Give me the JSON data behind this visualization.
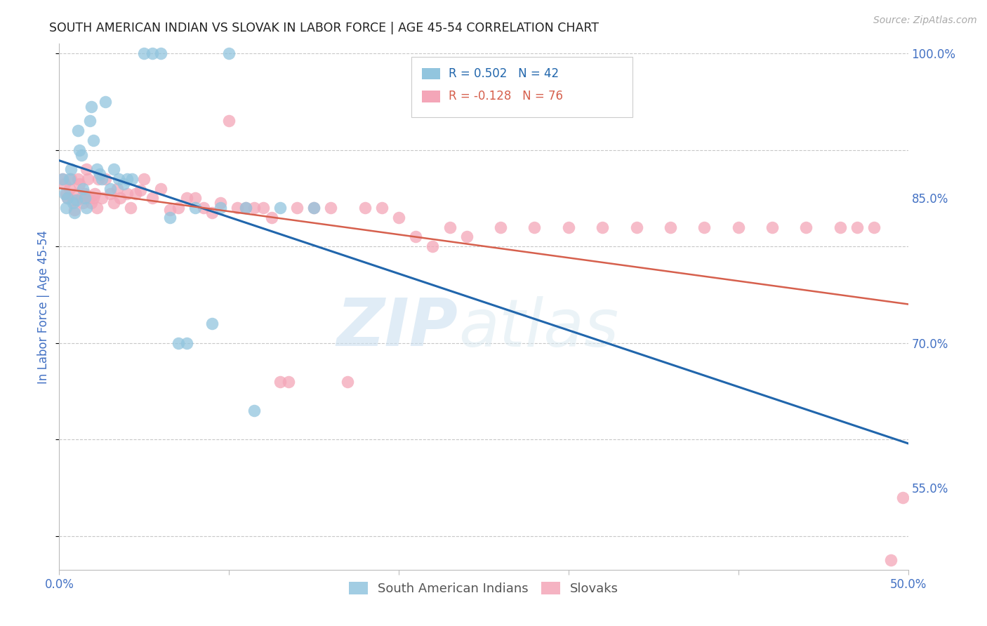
{
  "title": "SOUTH AMERICAN INDIAN VS SLOVAK IN LABOR FORCE | AGE 45-54 CORRELATION CHART",
  "source": "Source: ZipAtlas.com",
  "ylabel": "In Labor Force | Age 45-54",
  "xlim": [
    0.0,
    0.5
  ],
  "ylim": [
    0.465,
    1.01
  ],
  "legend_blue_label": "South American Indians",
  "legend_pink_label": "Slovaks",
  "R_blue": 0.502,
  "N_blue": 42,
  "R_pink": -0.128,
  "N_pink": 76,
  "blue_scatter_x": [
    0.002,
    0.003,
    0.004,
    0.005,
    0.006,
    0.007,
    0.008,
    0.009,
    0.01,
    0.011,
    0.012,
    0.013,
    0.014,
    0.015,
    0.016,
    0.018,
    0.019,
    0.02,
    0.022,
    0.024,
    0.025,
    0.027,
    0.03,
    0.032,
    0.035,
    0.038,
    0.04,
    0.043,
    0.05,
    0.055,
    0.06,
    0.065,
    0.07,
    0.075,
    0.08,
    0.09,
    0.095,
    0.1,
    0.11,
    0.115,
    0.13,
    0.15
  ],
  "blue_scatter_y": [
    0.87,
    0.855,
    0.84,
    0.85,
    0.87,
    0.88,
    0.845,
    0.835,
    0.848,
    0.92,
    0.9,
    0.895,
    0.86,
    0.85,
    0.84,
    0.93,
    0.945,
    0.91,
    0.88,
    0.875,
    0.87,
    0.95,
    0.86,
    0.88,
    0.87,
    0.865,
    0.87,
    0.87,
    1.0,
    1.0,
    1.0,
    0.83,
    0.7,
    0.7,
    0.84,
    0.72,
    0.84,
    1.0,
    0.84,
    0.63,
    0.84,
    0.84
  ],
  "pink_scatter_x": [
    0.002,
    0.003,
    0.004,
    0.005,
    0.006,
    0.007,
    0.008,
    0.009,
    0.01,
    0.011,
    0.012,
    0.013,
    0.014,
    0.015,
    0.016,
    0.017,
    0.018,
    0.019,
    0.02,
    0.021,
    0.022,
    0.023,
    0.025,
    0.027,
    0.03,
    0.032,
    0.034,
    0.036,
    0.04,
    0.042,
    0.045,
    0.048,
    0.05,
    0.055,
    0.06,
    0.065,
    0.07,
    0.075,
    0.08,
    0.085,
    0.09,
    0.095,
    0.1,
    0.105,
    0.11,
    0.115,
    0.12,
    0.125,
    0.13,
    0.135,
    0.14,
    0.15,
    0.16,
    0.17,
    0.18,
    0.19,
    0.2,
    0.21,
    0.22,
    0.23,
    0.24,
    0.26,
    0.28,
    0.3,
    0.32,
    0.34,
    0.36,
    0.38,
    0.4,
    0.42,
    0.44,
    0.46,
    0.47,
    0.48,
    0.49,
    0.497
  ],
  "pink_scatter_y": [
    0.87,
    0.865,
    0.855,
    0.85,
    0.86,
    0.87,
    0.848,
    0.838,
    0.855,
    0.87,
    0.865,
    0.85,
    0.845,
    0.855,
    0.88,
    0.87,
    0.85,
    0.845,
    0.85,
    0.855,
    0.84,
    0.87,
    0.85,
    0.87,
    0.855,
    0.845,
    0.86,
    0.85,
    0.855,
    0.84,
    0.855,
    0.858,
    0.87,
    0.85,
    0.86,
    0.838,
    0.84,
    0.85,
    0.85,
    0.84,
    0.835,
    0.845,
    0.93,
    0.84,
    0.84,
    0.84,
    0.84,
    0.83,
    0.66,
    0.66,
    0.84,
    0.84,
    0.84,
    0.66,
    0.84,
    0.84,
    0.83,
    0.81,
    0.8,
    0.82,
    0.81,
    0.82,
    0.82,
    0.82,
    0.82,
    0.82,
    0.82,
    0.82,
    0.82,
    0.82,
    0.82,
    0.82,
    0.82,
    0.82,
    0.475,
    0.54
  ],
  "watermark_zip": "ZIP",
  "watermark_atlas": "atlas",
  "background_color": "#ffffff",
  "blue_color": "#92c5de",
  "pink_color": "#f4a6b8",
  "blue_line_color": "#2166ac",
  "pink_line_color": "#d6604d",
  "grid_color": "#c8c8c8",
  "title_color": "#222222",
  "right_tick_color": "#4472C4",
  "bottom_tick_color": "#4472C4"
}
